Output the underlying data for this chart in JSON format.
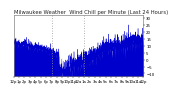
{
  "title": "Milwaukee Weather  Wind Chill per Minute (Last 24 Hours)",
  "line_color": "#0000cc",
  "fill_color": "#0000cc",
  "bg_color": "#ffffff",
  "plot_bg_color": "#ffffff",
  "y_min": -12,
  "y_max": 32,
  "y_ticks": [
    30,
    25,
    20,
    15,
    10,
    5,
    0,
    -5,
    -10
  ],
  "title_fontsize": 3.8,
  "tick_fontsize": 2.8,
  "seed": 7,
  "n_points": 1440,
  "vline_x1": 420,
  "vline_x2": 780,
  "vline_color": "#999999",
  "x_tick_count": 25
}
